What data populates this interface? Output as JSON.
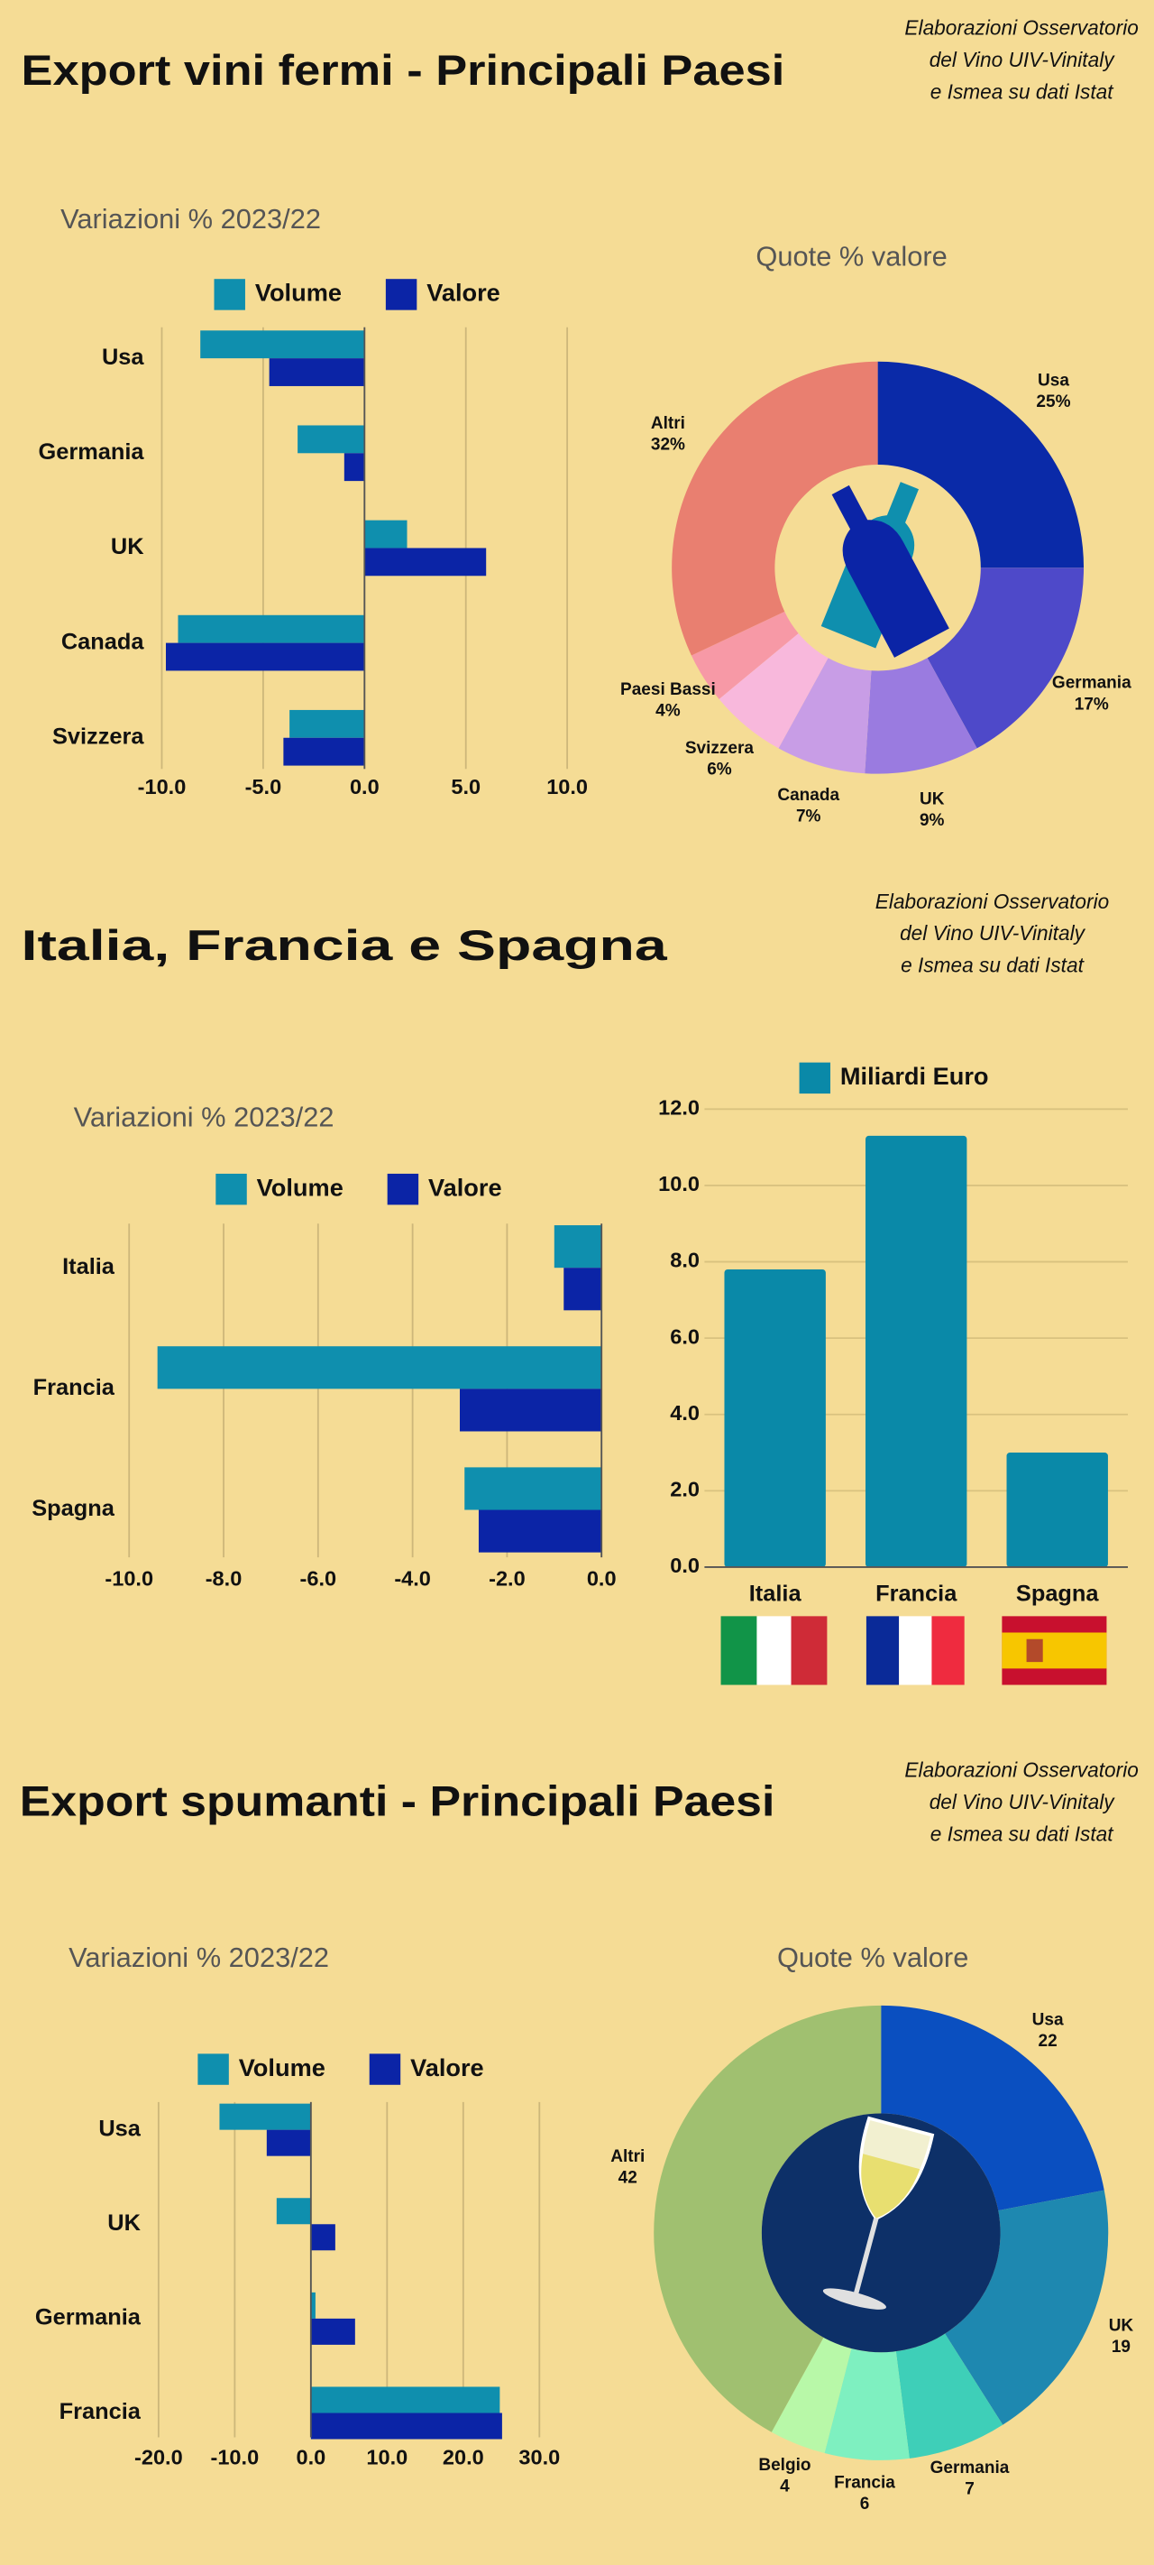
{
  "sections": [
    {
      "title": "Export vini fermi - Principali Paesi",
      "note": [
        "Elaborazioni Osservatorio",
        "del Vino UIV-Vinitaly",
        "e Ismea su dati Istat"
      ]
    },
    {
      "title": "Italia, Francia e Spagna",
      "note": [
        "Elaborazioni Osservatorio",
        "del Vino UIV-Vinitaly",
        "e Ismea su dati Istat"
      ]
    },
    {
      "title": "Export spumanti - Principali Paesi",
      "note": [
        "Elaborazioni Osservatorio",
        "del Vino UIV-Vinitaly",
        "e Ismea su dati Istat"
      ]
    }
  ],
  "chart_data": [
    {
      "type": "bar",
      "orientation": "horizontal",
      "subtitle": "Variazioni % 2023/22",
      "categories": [
        "Usa",
        "Germania",
        "UK",
        "Canada",
        "Svizzera"
      ],
      "series": [
        {
          "name": "Volume",
          "color": "#0f8fae",
          "values": [
            -8.1,
            -3.3,
            2.1,
            -9.2,
            -3.7
          ]
        },
        {
          "name": "Valore",
          "color": "#0b24a6",
          "values": [
            -4.7,
            -1.0,
            6.0,
            -9.8,
            -4.0
          ]
        }
      ],
      "xlim": [
        -10,
        10
      ],
      "xticks": [
        {
          "value": -10,
          "label": "-10.0"
        },
        {
          "value": -5,
          "label": "-5.0"
        },
        {
          "value": 0,
          "label": "0.0"
        },
        {
          "value": 5,
          "label": "5.0"
        },
        {
          "value": 10,
          "label": "10.0"
        }
      ],
      "grid": true
    },
    {
      "type": "donut",
      "title": "Quote % valore",
      "categories": [
        "Usa",
        "Germania",
        "UK",
        "Canada",
        "Svizzera",
        "Paesi Bassi",
        "Altri"
      ],
      "values": [
        25,
        17,
        9,
        7,
        6,
        4,
        32
      ],
      "value_labels": [
        "25%",
        "17%",
        "9%",
        "7%",
        "6%",
        "4%",
        "32%"
      ],
      "colors": [
        "#0a2aa8",
        "#4e49c9",
        "#9a7be0",
        "#c89de6",
        "#f8b8dc",
        "#f799a6",
        "#e97f70"
      ]
    },
    {
      "type": "bar",
      "orientation": "horizontal",
      "subtitle": "Variazioni % 2023/22",
      "categories": [
        "Italia",
        "Francia",
        "Spagna"
      ],
      "series": [
        {
          "name": "Volume",
          "color": "#0f8fae",
          "values": [
            -1.0,
            -9.4,
            -2.9
          ]
        },
        {
          "name": "Valore",
          "color": "#0b24a6",
          "values": [
            -0.8,
            -3.0,
            -2.6
          ]
        }
      ],
      "xlim": [
        -10,
        0
      ],
      "xticks": [
        {
          "value": -10,
          "label": "-10.0"
        },
        {
          "value": -8,
          "label": "-8.0"
        },
        {
          "value": -6,
          "label": "-6.0"
        },
        {
          "value": -4,
          "label": "-4.0"
        },
        {
          "value": -2,
          "label": "-2.0"
        },
        {
          "value": 0,
          "label": "0.0"
        }
      ],
      "grid": true
    },
    {
      "type": "bar",
      "categories": [
        "Italia",
        "Francia",
        "Spagna"
      ],
      "series": [
        {
          "name": "Miliardi Euro",
          "color": "#0a89a8",
          "values": [
            7.8,
            11.3,
            3.0
          ]
        }
      ],
      "ylim": [
        0,
        12
      ],
      "yticks": [
        {
          "value": 0,
          "label": "0.0"
        },
        {
          "value": 2,
          "label": "2.0"
        },
        {
          "value": 4,
          "label": "4.0"
        },
        {
          "value": 6,
          "label": "6.0"
        },
        {
          "value": 8,
          "label": "8.0"
        },
        {
          "value": 10,
          "label": "10.0"
        },
        {
          "value": 12,
          "label": "12.0"
        }
      ],
      "grid": true
    },
    {
      "type": "bar",
      "orientation": "horizontal",
      "subtitle": "Variazioni % 2023/22",
      "categories": [
        "Usa",
        "UK",
        "Germania",
        "Francia"
      ],
      "series": [
        {
          "name": "Volume",
          "color": "#0f8fae",
          "values": [
            -12.0,
            -4.5,
            0.6,
            24.8
          ]
        },
        {
          "name": "Valore",
          "color": "#0b24a6",
          "values": [
            -5.8,
            3.2,
            5.8,
            25.1
          ]
        }
      ],
      "xlim": [
        -20,
        30
      ],
      "xticks": [
        {
          "value": -20,
          "label": "-20.0"
        },
        {
          "value": -10,
          "label": "-10.0"
        },
        {
          "value": 0,
          "label": "0.0"
        },
        {
          "value": 10,
          "label": "10.0"
        },
        {
          "value": 20,
          "label": "20.0"
        },
        {
          "value": 30,
          "label": "30.0"
        }
      ],
      "grid": true
    },
    {
      "type": "donut",
      "title": "Quote % valore",
      "categories": [
        "Usa",
        "UK",
        "Germania",
        "Francia",
        "Belgio",
        "Altri"
      ],
      "values": [
        22,
        19,
        7,
        6,
        4,
        42
      ],
      "colors": [
        "#0a4fc0",
        "#1e88b0",
        "#3ecfb8",
        "#7ef0c0",
        "#b8f8a8",
        "#a0c070"
      ]
    }
  ]
}
